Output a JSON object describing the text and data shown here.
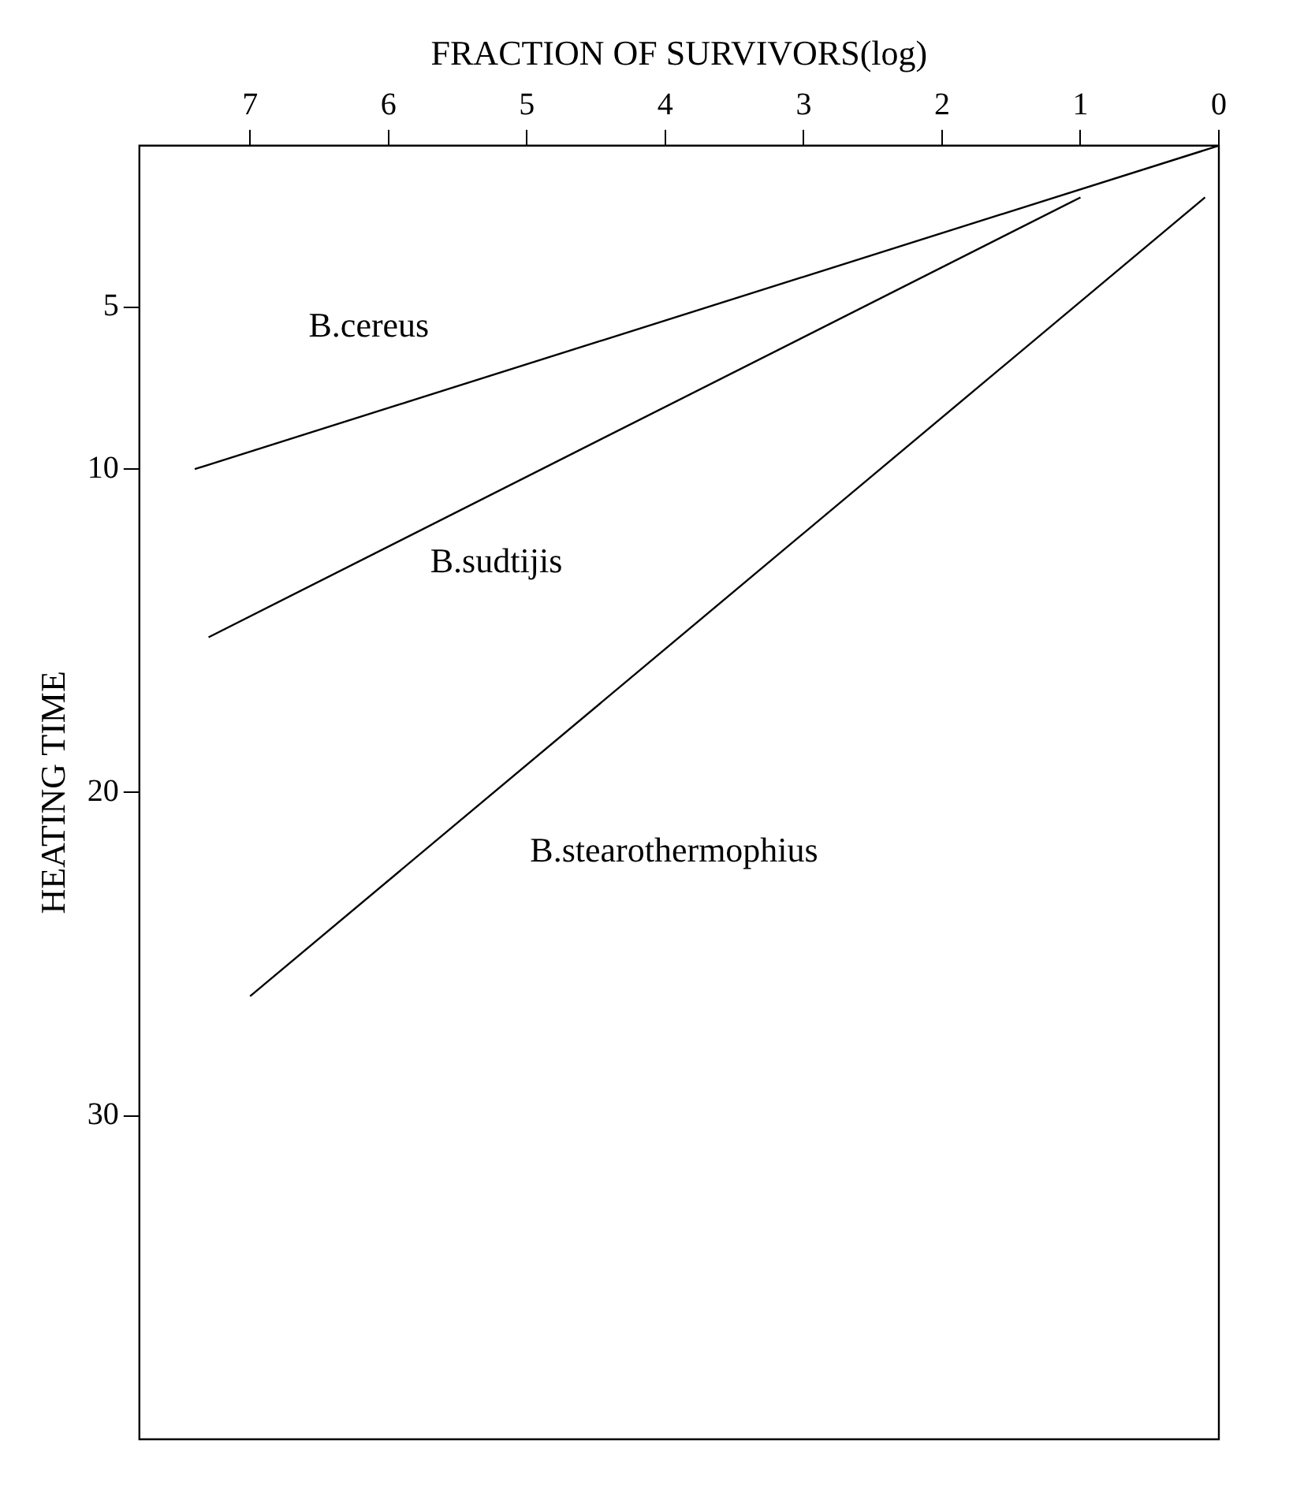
{
  "chart_data": {
    "type": "line",
    "xlabel": "FRACTION OF SURVIVORS(log)",
    "ylabel": "HEATING TIME",
    "xlim": [
      7.8,
      0
    ],
    "xticks": [
      0,
      1,
      2,
      3,
      4,
      5,
      6,
      7
    ],
    "ylim": [
      40,
      0
    ],
    "yticks": [
      5,
      10,
      20,
      30
    ],
    "series": [
      {
        "name": "B.cereus",
        "color": "#000000",
        "x": [
          0,
          7.4
        ],
        "values": [
          0,
          10
        ]
      },
      {
        "name": "B.sudtijis",
        "color": "#010101",
        "x": [
          1,
          7.3
        ],
        "values": [
          1.6,
          15.2
        ]
      },
      {
        "name": "B.stearothermophius",
        "color": "#020202",
        "x": [
          0.1,
          7
        ],
        "values": [
          1.6,
          26.3
        ]
      }
    ],
    "grid": false,
    "legend": false,
    "marker": "none",
    "line_style": "solid"
  }
}
